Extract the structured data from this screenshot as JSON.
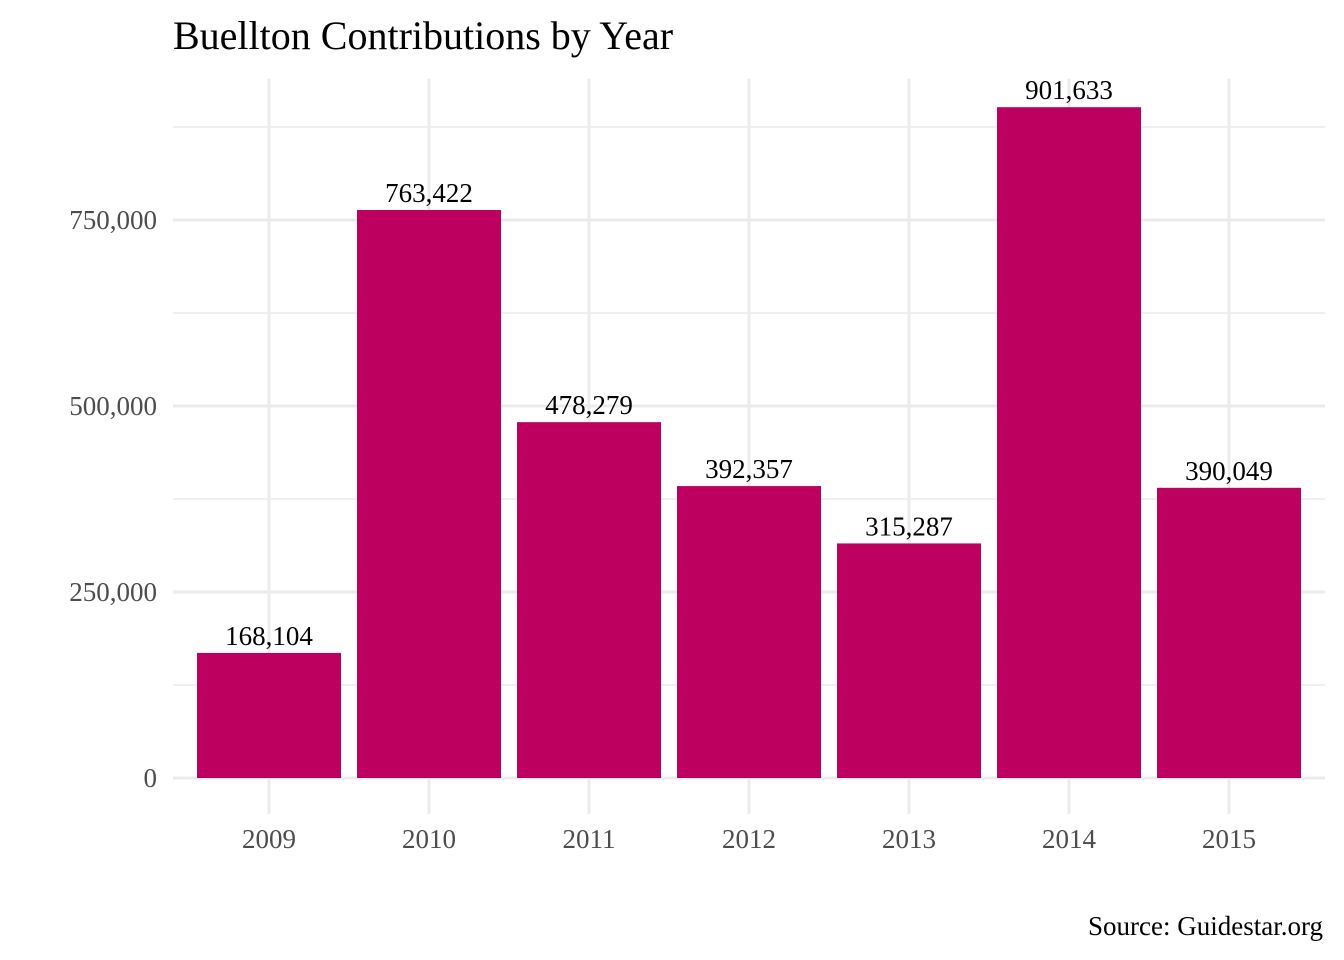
{
  "chart_data": {
    "type": "bar",
    "title": "Buellton Contributions by Year",
    "caption": "Source: Guidestar.org",
    "xlabel": "",
    "ylabel": "",
    "categories": [
      "2009",
      "2010",
      "2011",
      "2012",
      "2013",
      "2014",
      "2015"
    ],
    "values": [
      168104,
      763422,
      478279,
      392357,
      315287,
      901633,
      390049
    ],
    "value_labels": [
      "168,104",
      "763,422",
      "478,279",
      "392,357",
      "315,287",
      "901,633",
      "390,049"
    ],
    "yticks": [
      0,
      250000,
      500000,
      750000
    ],
    "ytick_labels": [
      "0",
      "250,000",
      "500,000",
      "750,000"
    ],
    "ylim": [
      0,
      940000
    ],
    "grid": true,
    "legend": "none",
    "colors": {
      "bar": "#bd0060",
      "grid": "#ebebeb",
      "tick_text": "#4d4d4d",
      "text": "#000000"
    }
  }
}
